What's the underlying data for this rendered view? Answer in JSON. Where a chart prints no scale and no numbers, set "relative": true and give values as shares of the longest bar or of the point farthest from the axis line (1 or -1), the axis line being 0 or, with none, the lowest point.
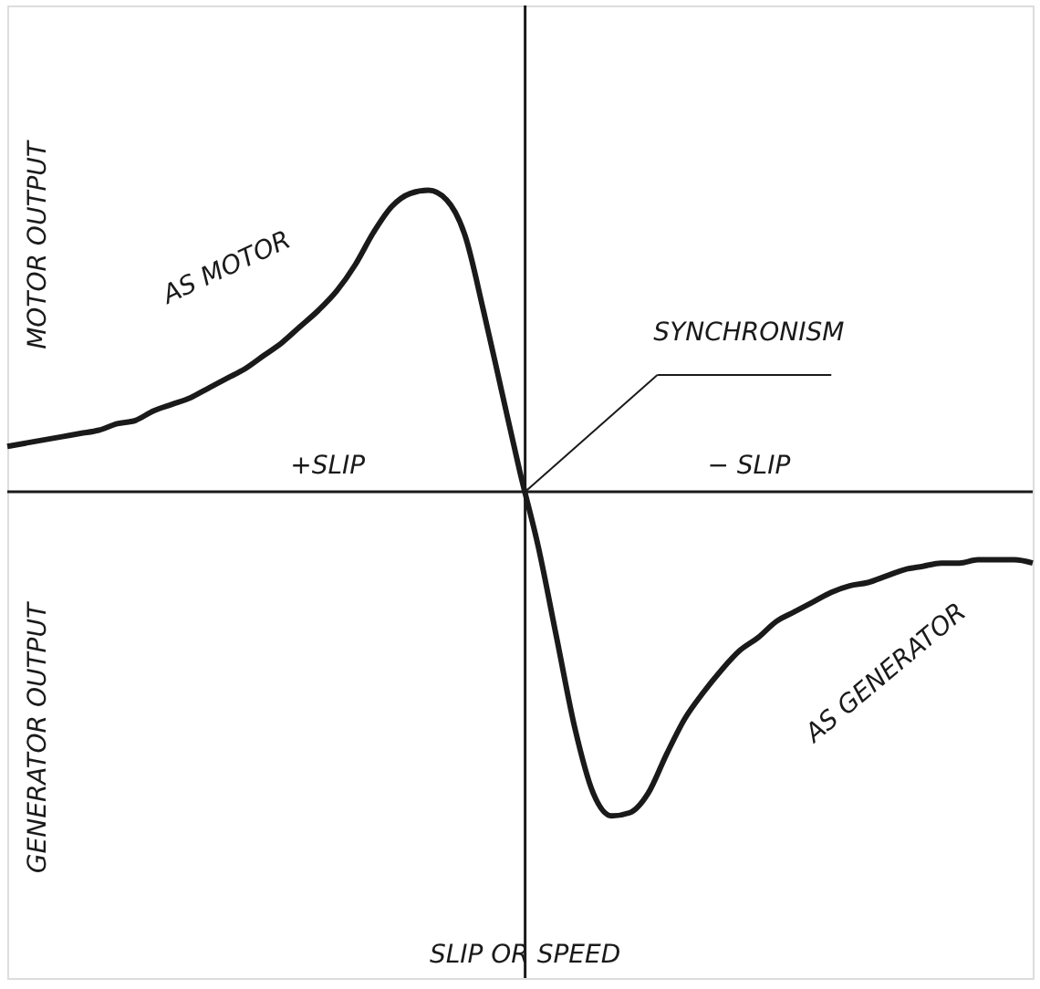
{
  "chart_data": {
    "type": "line",
    "relative": true,
    "xlabel": "SLIP OR SPEED",
    "categories": [
      null,
      null,
      null,
      null,
      null,
      null,
      null,
      null,
      null,
      null,
      null,
      null,
      null,
      null,
      null,
      null,
      null,
      null,
      null,
      null,
      null,
      null,
      null,
      null,
      null,
      null,
      null,
      null,
      null,
      null,
      null,
      null,
      null,
      null,
      null,
      null,
      null,
      null,
      null,
      null,
      null,
      null,
      null,
      null,
      null,
      null,
      null,
      null,
      null,
      null,
      null,
      null,
      null,
      null,
      null,
      null,
      null
    ],
    "series": [
      {
        "color": "#1a1a1a",
        "values": [
          0.14,
          0.15,
          0.16,
          0.17,
          0.18,
          0.19,
          0.21,
          0.22,
          0.25,
          0.27,
          0.29,
          0.32,
          0.35,
          0.38,
          0.42,
          0.46,
          0.51,
          0.56,
          0.62,
          0.7,
          0.8,
          0.88,
          0.92,
          0.93,
          0.9,
          0.79,
          0.56,
          0.31,
          0.06,
          -0.17,
          -0.45,
          -0.73,
          -0.93,
          -1,
          -0.99,
          -0.93,
          -0.81,
          -0.7,
          -0.62,
          -0.55,
          -0.49,
          -0.45,
          -0.4,
          -0.37,
          -0.34,
          -0.31,
          -0.29,
          -0.28,
          -0.26,
          -0.24,
          -0.23,
          -0.22,
          -0.22,
          -0.21,
          -0.21,
          -0.21,
          -0.22
        ]
      }
    ],
    "annotations": [
      "MOTOR OUTPUT",
      "GENERATOR OUTPUT",
      "AS MOTOR",
      "SYNCHRONISM",
      "+SLIP",
      "− SLIP",
      "AS GENERATOR"
    ],
    "grid": false,
    "marker": "none",
    "line_style": "solid"
  }
}
